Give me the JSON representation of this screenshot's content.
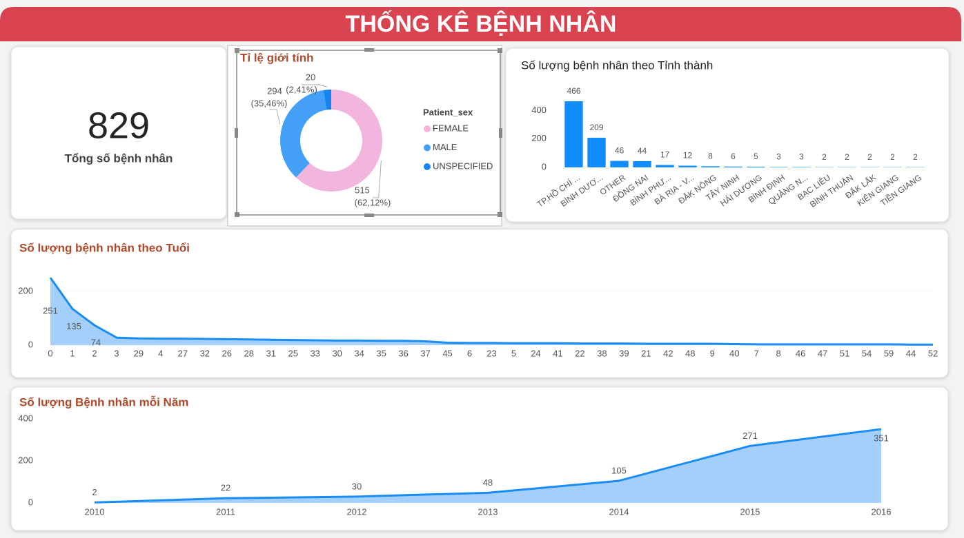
{
  "header": {
    "title": "THỐNG KÊ BỆNH NHÂN"
  },
  "card": {
    "value": "829",
    "label": "Tổng số bệnh nhân"
  },
  "chart_data": [
    {
      "type": "pie",
      "title": "Tỉ lệ giới tính",
      "legend_title": "Patient_sex",
      "categories": [
        "FEMALE",
        "MALE",
        "UNSPECIFIED"
      ],
      "values": [
        515,
        294,
        20
      ],
      "percent_labels": [
        "(62,12%)",
        "(35,46%)",
        "(2,41%)"
      ],
      "colors": [
        "#f2b5dd",
        "#44a0f6",
        "#1584f0"
      ],
      "legend": "right"
    },
    {
      "type": "bar",
      "title": "Số lượng bệnh nhân theo Tỉnh thành",
      "categories": [
        "TP.HỒ CHÍ ...",
        "BÌNH DƯƠ...",
        "OTHER",
        "ĐỒNG NAI",
        "BÌNH PHƯ...",
        "BÀ RỊA - V...",
        "ĐẮK NÔNG",
        "TÂY NINH",
        "HẢI DƯƠNG",
        "BÌNH ĐỊNH",
        "QUẢNG N...",
        "BẠC LIÊU",
        "BÌNH THUẬN",
        "ĐẮK LẮK",
        "KIÊN GIANG",
        "TIỀN GIANG"
      ],
      "values": [
        466,
        209,
        46,
        44,
        17,
        12,
        8,
        6,
        5,
        3,
        3,
        2,
        2,
        2,
        2,
        2
      ],
      "color": "#118dff",
      "ylim": [
        0,
        500
      ],
      "yticks": [
        0,
        200,
        400
      ],
      "grid": false
    },
    {
      "type": "area",
      "title": "Số lượng bệnh nhân theo Tuổi",
      "categories": [
        "0",
        "1",
        "2",
        "3",
        "29",
        "4",
        "27",
        "32",
        "26",
        "28",
        "31",
        "25",
        "33",
        "30",
        "34",
        "35",
        "36",
        "37",
        "45",
        "6",
        "23",
        "5",
        "24",
        "41",
        "22",
        "38",
        "39",
        "21",
        "42",
        "48",
        "9",
        "40",
        "7",
        "8",
        "46",
        "47",
        "51",
        "54",
        "59",
        "44",
        "52"
      ],
      "values": [
        251,
        135,
        74,
        28,
        25,
        24,
        24,
        23,
        22,
        21,
        20,
        19,
        18,
        17,
        17,
        16,
        16,
        14,
        9,
        8,
        8,
        7,
        7,
        7,
        6,
        6,
        6,
        5,
        5,
        5,
        5,
        4,
        3,
        3,
        3,
        3,
        3,
        3,
        3,
        2,
        2
      ],
      "value_labels": [
        "251",
        "135",
        "74",
        null,
        null,
        null,
        null,
        null,
        null,
        null,
        null,
        null,
        null,
        null,
        null,
        null,
        null,
        null,
        null,
        null,
        null,
        null,
        null,
        null,
        null,
        null,
        null,
        null,
        null,
        null,
        null,
        null,
        null,
        null,
        null,
        null,
        null,
        null,
        null,
        null,
        null
      ],
      "color": "#1a8cf5",
      "ylim": [
        0,
        270
      ],
      "yticks": [
        0,
        200
      ],
      "grid": true
    },
    {
      "type": "area",
      "title": "Số lượng Bệnh nhân mỗi Năm",
      "x": [
        2010,
        2011,
        2012,
        2013,
        2014,
        2015,
        2016
      ],
      "values": [
        2,
        22,
        30,
        48,
        105,
        271,
        351
      ],
      "color": "#1a8cf5",
      "xlim": [
        2010,
        2016
      ],
      "xticks": [
        2010,
        2011,
        2012,
        2013,
        2014,
        2015,
        2016
      ],
      "ylim": [
        0,
        400
      ],
      "yticks": [
        0,
        200,
        400
      ],
      "grid": false
    }
  ]
}
